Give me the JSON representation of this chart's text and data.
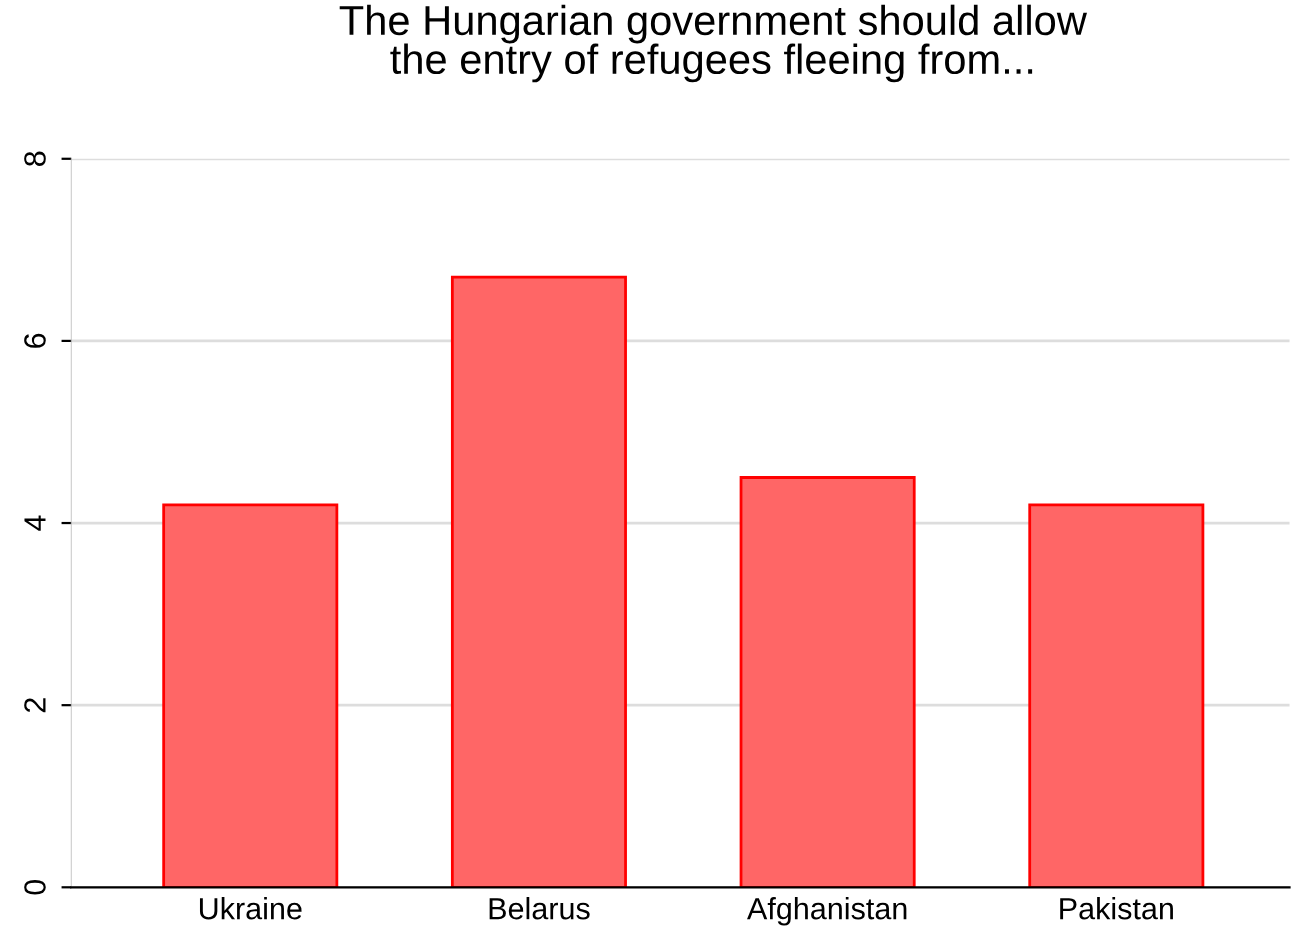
{
  "chart_data": {
    "type": "bar",
    "title": "The Hungarian government should allow\nthe entry of refugees fleeing from...",
    "categories": [
      "Ukraine",
      "Belarus",
      "Afghanistan",
      "Pakistan"
    ],
    "values": [
      4.2,
      6.7,
      4.5,
      4.2
    ],
    "color": "#ff6666",
    "ylim": [
      0,
      8
    ],
    "yticks": [
      0,
      2,
      4,
      6,
      8
    ],
    "grid": "y"
  }
}
